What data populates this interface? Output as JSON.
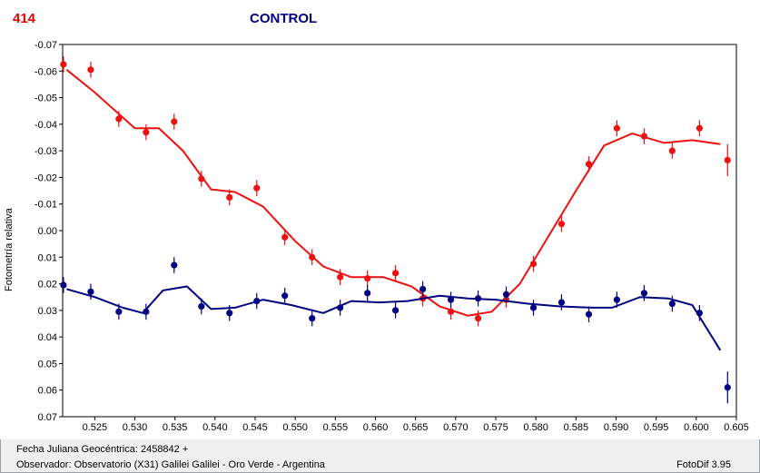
{
  "header": {
    "id_label": "414",
    "title": "CONTROL"
  },
  "footer": {
    "date_line": "Fecha Juliana Geocéntrica: 2458842 +",
    "observer_line": "Observador: Observatorio (X31) Galilei Galilei - Oro Verde - Argentina",
    "version": "FotoDif 3.95"
  },
  "colors": {
    "series_red": "#ee1111",
    "series_blue": "#000080",
    "grid": "#888888"
  },
  "chart_data": {
    "type": "scatter",
    "title": "CONTROL",
    "ylabel": "Fotometría relativa",
    "xlabel": "",
    "xlim": [
      0.521,
      0.605
    ],
    "ylim": [
      -0.07,
      0.07
    ],
    "y_inverted": true,
    "grid": true,
    "x_ticks": [
      "0.525",
      "0.530",
      "0.535",
      "0.540",
      "0.545",
      "0.550",
      "0.555",
      "0.560",
      "0.565",
      "0.570",
      "0.575",
      "0.580",
      "0.585",
      "0.590",
      "0.595",
      "0.600",
      "0.605"
    ],
    "x_tick_values": [
      0.525,
      0.53,
      0.535,
      0.54,
      0.545,
      0.55,
      0.555,
      0.56,
      0.565,
      0.57,
      0.575,
      0.58,
      0.585,
      0.59,
      0.595,
      0.6,
      0.605
    ],
    "y_ticks": [
      "-0.07",
      "-0.06",
      "-0.05",
      "-0.04",
      "-0.03",
      "-0.02",
      "-0.01",
      "0.00",
      "0.01",
      "0.02",
      "0.03",
      "0.04",
      "0.05",
      "0.06",
      "0.07"
    ],
    "y_tick_values": [
      -0.07,
      -0.06,
      -0.05,
      -0.04,
      -0.03,
      -0.02,
      -0.01,
      0.0,
      0.01,
      0.02,
      0.03,
      0.04,
      0.05,
      0.06,
      0.07
    ],
    "series": [
      {
        "color": "#ee1111",
        "points": [
          {
            "x": 0.5211,
            "y": -0.0625,
            "err": 0.003
          },
          {
            "x": 0.5245,
            "y": -0.0605,
            "err": 0.003
          },
          {
            "x": 0.528,
            "y": -0.042,
            "err": 0.003
          },
          {
            "x": 0.5314,
            "y": -0.037,
            "err": 0.003
          },
          {
            "x": 0.5349,
            "y": -0.041,
            "err": 0.003
          },
          {
            "x": 0.5383,
            "y": -0.0195,
            "err": 0.003
          },
          {
            "x": 0.5418,
            "y": -0.0125,
            "err": 0.003
          },
          {
            "x": 0.5452,
            "y": -0.016,
            "err": 0.003
          },
          {
            "x": 0.5487,
            "y": 0.0025,
            "err": 0.003
          },
          {
            "x": 0.5521,
            "y": 0.01,
            "err": 0.003
          },
          {
            "x": 0.5556,
            "y": 0.0175,
            "err": 0.003
          },
          {
            "x": 0.559,
            "y": 0.018,
            "err": 0.003
          },
          {
            "x": 0.5625,
            "y": 0.016,
            "err": 0.003
          },
          {
            "x": 0.5659,
            "y": 0.0255,
            "err": 0.003
          },
          {
            "x": 0.5694,
            "y": 0.0305,
            "err": 0.003
          },
          {
            "x": 0.5728,
            "y": 0.033,
            "err": 0.003
          },
          {
            "x": 0.5763,
            "y": 0.026,
            "err": 0.003
          },
          {
            "x": 0.5797,
            "y": 0.0125,
            "err": 0.003
          },
          {
            "x": 0.5832,
            "y": -0.0025,
            "err": 0.003
          },
          {
            "x": 0.5866,
            "y": -0.025,
            "err": 0.003
          },
          {
            "x": 0.5901,
            "y": -0.0385,
            "err": 0.003
          },
          {
            "x": 0.5935,
            "y": -0.0355,
            "err": 0.003
          },
          {
            "x": 0.597,
            "y": -0.03,
            "err": 0.003
          },
          {
            "x": 0.6004,
            "y": -0.0385,
            "err": 0.003
          },
          {
            "x": 0.6039,
            "y": -0.0265,
            "err": 0.006
          }
        ],
        "fit": [
          {
            "x": 0.5215,
            "y": -0.0605
          },
          {
            "x": 0.525,
            "y": -0.052
          },
          {
            "x": 0.53,
            "y": -0.0385
          },
          {
            "x": 0.533,
            "y": -0.0385
          },
          {
            "x": 0.536,
            "y": -0.03
          },
          {
            "x": 0.5395,
            "y": -0.0155
          },
          {
            "x": 0.5425,
            "y": -0.0145
          },
          {
            "x": 0.546,
            "y": -0.009
          },
          {
            "x": 0.55,
            "y": 0.004
          },
          {
            "x": 0.5535,
            "y": 0.0135
          },
          {
            "x": 0.557,
            "y": 0.0175
          },
          {
            "x": 0.561,
            "y": 0.0175
          },
          {
            "x": 0.5645,
            "y": 0.021
          },
          {
            "x": 0.568,
            "y": 0.0285
          },
          {
            "x": 0.5715,
            "y": 0.032
          },
          {
            "x": 0.5745,
            "y": 0.0305
          },
          {
            "x": 0.578,
            "y": 0.02
          },
          {
            "x": 0.581,
            "y": 0.005
          },
          {
            "x": 0.585,
            "y": -0.015
          },
          {
            "x": 0.5885,
            "y": -0.032
          },
          {
            "x": 0.592,
            "y": -0.0365
          },
          {
            "x": 0.596,
            "y": -0.033
          },
          {
            "x": 0.5995,
            "y": -0.034
          },
          {
            "x": 0.603,
            "y": -0.0325
          }
        ]
      },
      {
        "color": "#000080",
        "points": [
          {
            "x": 0.5211,
            "y": 0.0205,
            "err": 0.003
          },
          {
            "x": 0.5245,
            "y": 0.023,
            "err": 0.003
          },
          {
            "x": 0.528,
            "y": 0.0305,
            "err": 0.003
          },
          {
            "x": 0.5314,
            "y": 0.0305,
            "err": 0.003
          },
          {
            "x": 0.5349,
            "y": 0.013,
            "err": 0.003
          },
          {
            "x": 0.5383,
            "y": 0.0285,
            "err": 0.003
          },
          {
            "x": 0.5418,
            "y": 0.031,
            "err": 0.003
          },
          {
            "x": 0.5452,
            "y": 0.0265,
            "err": 0.003
          },
          {
            "x": 0.5487,
            "y": 0.0245,
            "err": 0.003
          },
          {
            "x": 0.5521,
            "y": 0.033,
            "err": 0.003
          },
          {
            "x": 0.5556,
            "y": 0.029,
            "err": 0.003
          },
          {
            "x": 0.559,
            "y": 0.0235,
            "err": 0.003
          },
          {
            "x": 0.5625,
            "y": 0.03,
            "err": 0.003
          },
          {
            "x": 0.5659,
            "y": 0.022,
            "err": 0.003
          },
          {
            "x": 0.5694,
            "y": 0.026,
            "err": 0.003
          },
          {
            "x": 0.5728,
            "y": 0.0255,
            "err": 0.003
          },
          {
            "x": 0.5763,
            "y": 0.024,
            "err": 0.003
          },
          {
            "x": 0.5797,
            "y": 0.029,
            "err": 0.003
          },
          {
            "x": 0.5832,
            "y": 0.027,
            "err": 0.003
          },
          {
            "x": 0.5866,
            "y": 0.0315,
            "err": 0.003
          },
          {
            "x": 0.5901,
            "y": 0.026,
            "err": 0.003
          },
          {
            "x": 0.5935,
            "y": 0.0235,
            "err": 0.003
          },
          {
            "x": 0.597,
            "y": 0.0275,
            "err": 0.003
          },
          {
            "x": 0.6004,
            "y": 0.031,
            "err": 0.003
          },
          {
            "x": 0.6039,
            "y": 0.059,
            "err": 0.006
          }
        ],
        "fit": [
          {
            "x": 0.5215,
            "y": 0.022
          },
          {
            "x": 0.525,
            "y": 0.025
          },
          {
            "x": 0.5285,
            "y": 0.029
          },
          {
            "x": 0.531,
            "y": 0.031
          },
          {
            "x": 0.5335,
            "y": 0.0225
          },
          {
            "x": 0.5365,
            "y": 0.021
          },
          {
            "x": 0.5395,
            "y": 0.0295
          },
          {
            "x": 0.5425,
            "y": 0.029
          },
          {
            "x": 0.546,
            "y": 0.026
          },
          {
            "x": 0.5495,
            "y": 0.028
          },
          {
            "x": 0.5535,
            "y": 0.031
          },
          {
            "x": 0.557,
            "y": 0.0265
          },
          {
            "x": 0.5605,
            "y": 0.027
          },
          {
            "x": 0.564,
            "y": 0.0265
          },
          {
            "x": 0.568,
            "y": 0.0245
          },
          {
            "x": 0.5715,
            "y": 0.0255
          },
          {
            "x": 0.575,
            "y": 0.026
          },
          {
            "x": 0.579,
            "y": 0.0275
          },
          {
            "x": 0.583,
            "y": 0.0285
          },
          {
            "x": 0.587,
            "y": 0.029
          },
          {
            "x": 0.5895,
            "y": 0.029
          },
          {
            "x": 0.593,
            "y": 0.025
          },
          {
            "x": 0.5965,
            "y": 0.0255
          },
          {
            "x": 0.5995,
            "y": 0.028
          },
          {
            "x": 0.603,
            "y": 0.045
          }
        ]
      }
    ]
  }
}
